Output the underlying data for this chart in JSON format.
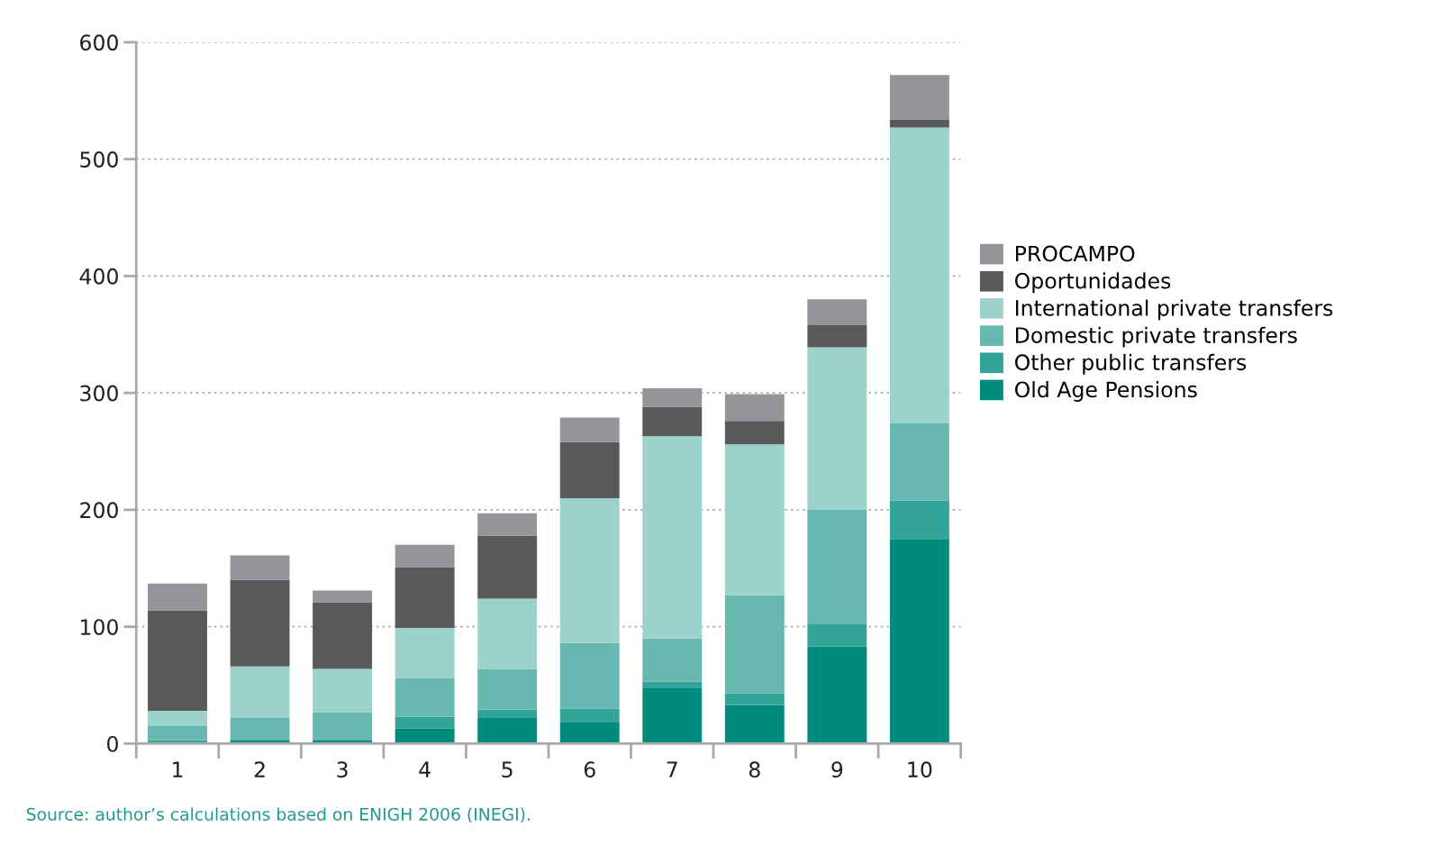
{
  "chart_data": {
    "type": "bar",
    "stacked": true,
    "categories": [
      "1",
      "2",
      "3",
      "4",
      "5",
      "6",
      "7",
      "8",
      "9",
      "10"
    ],
    "series": [
      {
        "name": "Old Age Pensions",
        "color": "#008c7d",
        "values": [
          1,
          3,
          3,
          13,
          22,
          18,
          48,
          33,
          83,
          175
        ]
      },
      {
        "name": "Other public transfers",
        "color": "#33a499",
        "values": [
          2,
          1,
          1,
          10,
          7,
          12,
          5,
          10,
          19,
          33
        ]
      },
      {
        "name": "Domestic private transfers",
        "color": "#67b8b0",
        "values": [
          12,
          18,
          23,
          33,
          35,
          56,
          37,
          84,
          98,
          66
        ]
      },
      {
        "name": "International private transfers",
        "color": "#9bd3cc",
        "values": [
          13,
          44,
          37,
          43,
          60,
          124,
          173,
          129,
          139,
          253
        ]
      },
      {
        "name": "Oportunidades",
        "color": "#58595b",
        "values": [
          86,
          74,
          57,
          52,
          54,
          48,
          25,
          20,
          19,
          7
        ]
      },
      {
        "name": "PROCAMPO",
        "color": "#939598",
        "values": [
          23,
          21,
          10,
          19,
          19,
          21,
          16,
          23,
          22,
          38
        ]
      }
    ],
    "ylim": [
      0,
      600
    ],
    "yticks": [
      0,
      100,
      200,
      300,
      400,
      500,
      600
    ],
    "grid": "y",
    "legend": "right",
    "annotations": [
      "Source: author’s calculations based on ENIGH 2006 (INEGI)."
    ]
  }
}
